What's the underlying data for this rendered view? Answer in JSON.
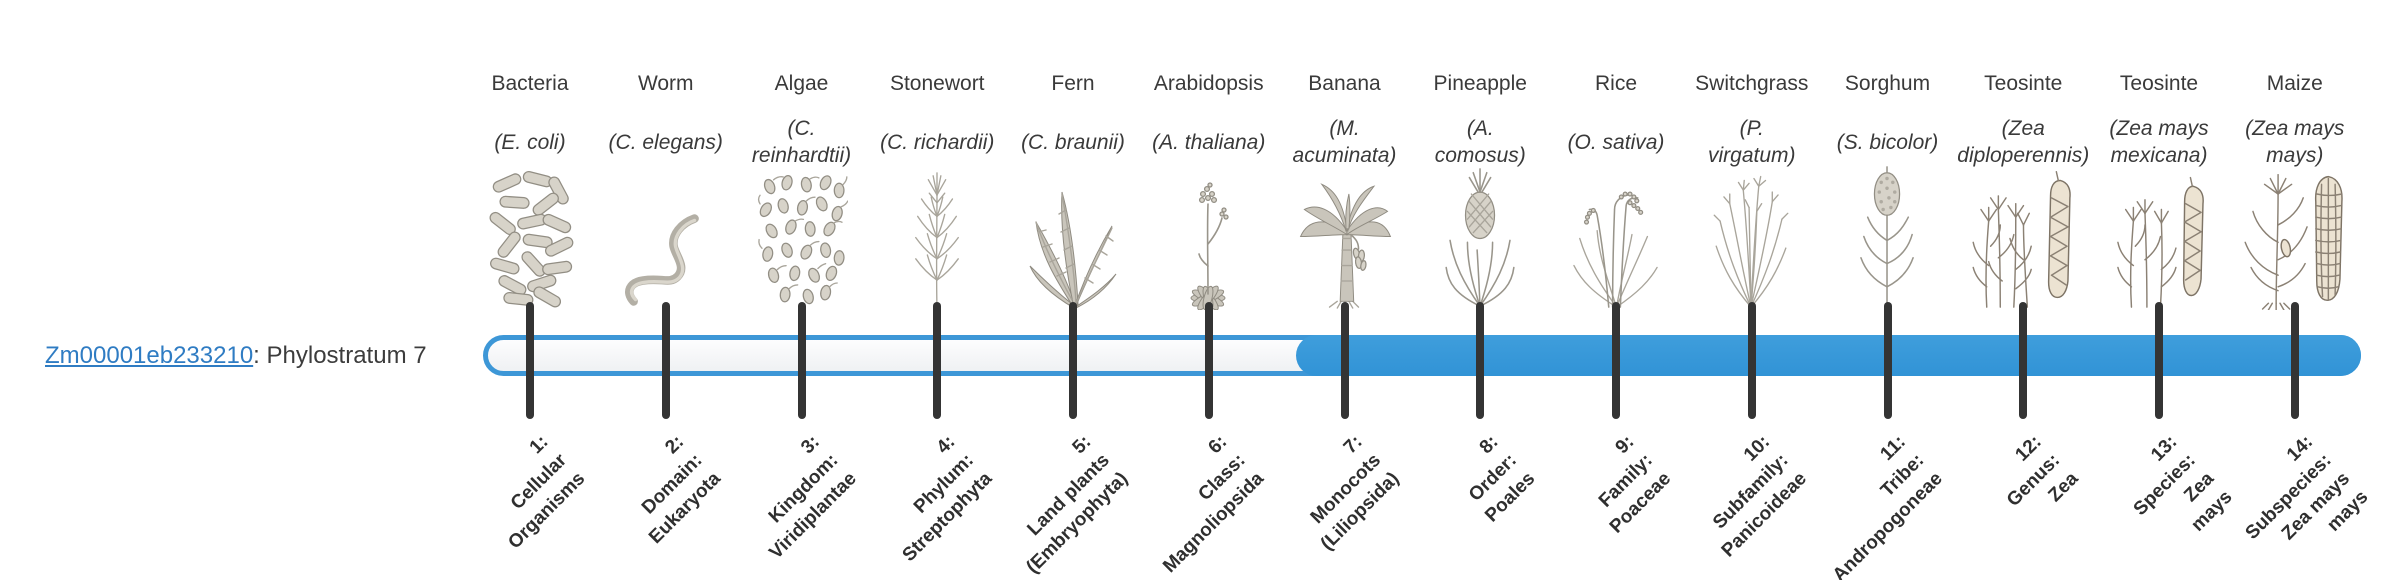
{
  "gene": {
    "id": "Zm00001eb233210",
    "stratum_text": ": Phylostratum 7",
    "stratum_number": 7
  },
  "figure": {
    "type": "phylostratigraphy-timeline",
    "strata_count": 14,
    "highlighted_from_stratum": 7,
    "colors": {
      "bar_fill": "#3598da",
      "bar_outline": "#3d97d7",
      "bar_empty": "#f5f6f8",
      "tick": "#343434",
      "link": "#2f7cc3",
      "text": "#3a3a3a"
    },
    "columns": [
      {
        "number": 1,
        "organism": "Bacteria",
        "scientific_lines": [
          "(E. coli)"
        ],
        "icon": "bacteria-icon",
        "stratum_lines": [
          "1:",
          "Cellular",
          "Organisms"
        ],
        "in_gene_range": false
      },
      {
        "number": 2,
        "organism": "Worm",
        "scientific_lines": [
          "(C. elegans)"
        ],
        "icon": "worm-icon",
        "stratum_lines": [
          "2:",
          "Domain:",
          "Eukaryota"
        ],
        "in_gene_range": false
      },
      {
        "number": 3,
        "organism": "Algae",
        "scientific_lines": [
          "(C.",
          "reinhardtii)"
        ],
        "icon": "algae-icon",
        "stratum_lines": [
          "3:",
          "Kingdom:",
          "Viridiplantae"
        ],
        "in_gene_range": false
      },
      {
        "number": 4,
        "organism": "Stonewort",
        "scientific_lines": [
          "(C. richardii)"
        ],
        "icon": "stonewort-icon",
        "stratum_lines": [
          "4:",
          "Phylum:",
          "Streptophyta"
        ],
        "in_gene_range": false
      },
      {
        "number": 5,
        "organism": "Fern",
        "scientific_lines": [
          "(C. braunii)"
        ],
        "icon": "fern-icon",
        "stratum_lines": [
          "5:",
          "Land plants",
          "(Embryophyta)"
        ],
        "in_gene_range": false
      },
      {
        "number": 6,
        "organism": "Arabidopsis",
        "scientific_lines": [
          "(A. thaliana)"
        ],
        "icon": "arabidopsis-icon",
        "stratum_lines": [
          "6:",
          "Class:",
          "Magnoliopsida"
        ],
        "in_gene_range": false
      },
      {
        "number": 7,
        "organism": "Banana",
        "scientific_lines": [
          "(M.",
          "acuminata)"
        ],
        "icon": "banana-icon",
        "stratum_lines": [
          "7:",
          "Monocots",
          "(Liliopsida)"
        ],
        "in_gene_range": true
      },
      {
        "number": 8,
        "organism": "Pineapple",
        "scientific_lines": [
          "(A.",
          "comosus)"
        ],
        "icon": "pineapple-icon",
        "stratum_lines": [
          "8:",
          "Order:",
          "Poales"
        ],
        "in_gene_range": true
      },
      {
        "number": 9,
        "organism": "Rice",
        "scientific_lines": [
          "(O. sativa)"
        ],
        "icon": "rice-icon",
        "stratum_lines": [
          "9:",
          "Family:",
          "Poaceae"
        ],
        "in_gene_range": true
      },
      {
        "number": 10,
        "organism": "Switchgrass",
        "scientific_lines": [
          "(P.",
          "virgatum)"
        ],
        "icon": "switchgrass-icon",
        "stratum_lines": [
          "10:",
          "Subfamily:",
          "Panicoideae"
        ],
        "in_gene_range": true
      },
      {
        "number": 11,
        "organism": "Sorghum",
        "scientific_lines": [
          "(S. bicolor)"
        ],
        "icon": "sorghum-icon",
        "stratum_lines": [
          "11:",
          "Tribe:",
          "Andropogoneae"
        ],
        "in_gene_range": true
      },
      {
        "number": 12,
        "organism": "Teosinte",
        "scientific_lines": [
          "(Zea",
          "diploperennis)"
        ],
        "icon": "teosinte-diploperennis-icon",
        "stratum_lines": [
          "12:",
          "Genus:",
          "Zea"
        ],
        "in_gene_range": true
      },
      {
        "number": 13,
        "organism": "Teosinte",
        "scientific_lines": [
          "(Zea mays",
          "mexicana)"
        ],
        "icon": "teosinte-mexicana-icon",
        "stratum_lines": [
          "13:",
          "Species:",
          "Zea",
          "mays"
        ],
        "in_gene_range": true
      },
      {
        "number": 14,
        "organism": "Maize",
        "scientific_lines": [
          "(Zea mays",
          "mays)"
        ],
        "icon": "maize-icon",
        "stratum_lines": [
          "14:",
          "Subspecies:",
          "Zea mays",
          "mays"
        ],
        "in_gene_range": true
      }
    ]
  }
}
